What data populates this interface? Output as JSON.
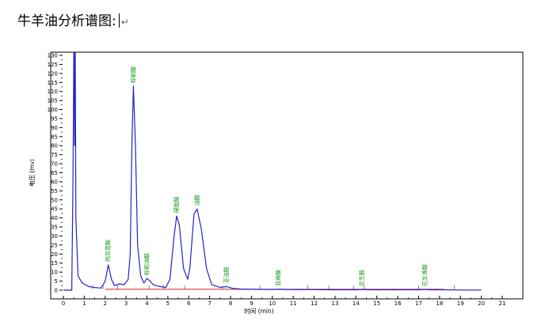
{
  "document": {
    "heading": "牛羊油分析谱图:",
    "return_mark": "↵"
  },
  "chart_data": {
    "type": "line",
    "xlabel": "时间 (min)",
    "ylabel": "电压 (mv)",
    "xlim": [
      -1,
      22
    ],
    "ylim": [
      -5,
      132
    ],
    "x_ticks": [
      0,
      1,
      2,
      3,
      4,
      5,
      6,
      7,
      8,
      9,
      10,
      11,
      12,
      13,
      14,
      15,
      16,
      17,
      18,
      19,
      20,
      21
    ],
    "y_ticks": [
      0,
      5,
      10,
      15,
      20,
      25,
      30,
      35,
      40,
      45,
      50,
      55,
      60,
      65,
      70,
      75,
      80,
      85,
      90,
      95,
      100,
      105,
      110,
      115,
      120,
      125,
      130
    ],
    "colors": {
      "trace": "#2323c8",
      "baseline": "#cc2222",
      "peak_label": "#1e9a1e",
      "frame": "#000000"
    },
    "series": [
      {
        "x": [
          0,
          0.4,
          0.46,
          0.5,
          0.52,
          0.54,
          0.57,
          0.6,
          0.7,
          0.9,
          1.2,
          1.5,
          1.8,
          2.0,
          2.15,
          2.3,
          2.45,
          2.7,
          2.9,
          3.1,
          3.2,
          3.28,
          3.35,
          3.45,
          3.55,
          3.7,
          3.85,
          4.0,
          4.15,
          4.3,
          4.6,
          4.9,
          5.1,
          5.3,
          5.42,
          5.55,
          5.75,
          5.95,
          6.05,
          6.25,
          6.4,
          6.6,
          6.85,
          7.1,
          7.5,
          7.8,
          8.1,
          8.5,
          9.0,
          10.0,
          10.3,
          10.6,
          11.0,
          12.0,
          13.0,
          14.0,
          14.3,
          14.6,
          15.0,
          16.0,
          17.0,
          17.3,
          17.6,
          18.0,
          19.0,
          20.0
        ],
        "values": [
          0,
          0,
          60,
          132,
          132,
          80,
          132,
          40,
          8,
          4,
          2,
          1.5,
          1.2,
          5,
          14,
          6,
          2.5,
          3.5,
          3,
          6,
          20,
          80,
          113,
          80,
          25,
          8,
          4,
          6.5,
          5,
          3,
          2,
          1.5,
          6,
          30,
          41,
          36,
          12,
          6,
          12,
          42,
          45,
          34,
          12,
          3,
          1.5,
          2,
          1,
          0.6,
          0.5,
          0.4,
          0.5,
          0.4,
          0.3,
          0.3,
          0.2,
          0.2,
          0.4,
          0.2,
          0.2,
          0.2,
          0.2,
          0.4,
          0.2,
          0.2,
          0.1,
          0.1
        ]
      }
    ],
    "baseline": {
      "x": [
        2.0,
        18.2
      ],
      "values": [
        0.5,
        0.5
      ]
    },
    "peak_labels": [
      {
        "text": "肉豆蔻酸",
        "x": 2.15,
        "y": 14
      },
      {
        "text": "棕榈酸",
        "x": 3.35,
        "y": 113
      },
      {
        "text": "棕榈油酸",
        "x": 4.0,
        "y": 6.5
      },
      {
        "text": "硬脂酸",
        "x": 5.42,
        "y": 41
      },
      {
        "text": "油酸",
        "x": 6.4,
        "y": 45
      },
      {
        "text": "亚油酸",
        "x": 7.8,
        "y": 2
      },
      {
        "text": "亚麻酸",
        "x": 10.3,
        "y": 0.5
      },
      {
        "text": "花生酸",
        "x": 14.3,
        "y": 0.4
      },
      {
        "text": "花生烯酸",
        "x": 17.3,
        "y": 0.4
      }
    ],
    "event_ticks": [
      1.4,
      1.9,
      2.6,
      4.1,
      4.8,
      5.8,
      7.6,
      9.4,
      11.7,
      12.7,
      13.9,
      14.4,
      17.0,
      18.7
    ]
  }
}
